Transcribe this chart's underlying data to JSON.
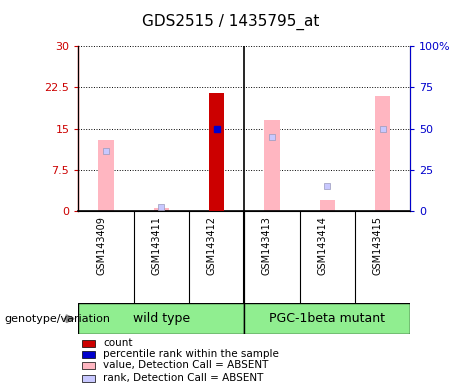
{
  "title": "GDS2515 / 1435795_at",
  "samples": [
    "GSM143409",
    "GSM143411",
    "GSM143412",
    "GSM143413",
    "GSM143414",
    "GSM143415"
  ],
  "pink_bars": [
    13.0,
    0.5,
    null,
    16.5,
    2.0,
    21.0
  ],
  "red_bars": [
    null,
    null,
    21.5,
    null,
    null,
    null
  ],
  "blue_markers": [
    null,
    null,
    15.0,
    null,
    null,
    null
  ],
  "light_blue_markers": [
    11.0,
    0.8,
    null,
    13.5,
    4.5,
    15.0
  ],
  "ylim_left": [
    0,
    30
  ],
  "ylim_right": [
    0,
    100
  ],
  "yticks_left": [
    0,
    7.5,
    15,
    22.5,
    30
  ],
  "yticks_right": [
    0,
    25,
    50,
    75,
    100
  ],
  "ytick_labels_left": [
    "0",
    "7.5",
    "15",
    "22.5",
    "30"
  ],
  "ytick_labels_right": [
    "0",
    "25",
    "50",
    "75",
    "100%"
  ],
  "left_axis_color": "#CC0000",
  "right_axis_color": "#0000CC",
  "wt_label": "wild type",
  "pgc_label": "PGC-1beta mutant",
  "genotype_label": "genotype/variation",
  "group_color": "#90EE90",
  "sample_bg_color": "#d3d3d3",
  "legend_items": [
    {
      "color": "#CC0000",
      "label": "count"
    },
    {
      "color": "#0000CC",
      "label": "percentile rank within the sample"
    },
    {
      "color": "#FFB6C1",
      "label": "value, Detection Call = ABSENT"
    },
    {
      "color": "#c8c8ff",
      "label": "rank, Detection Call = ABSENT"
    }
  ],
  "wt_indices": [
    0,
    1,
    2
  ],
  "pgc_indices": [
    3,
    4,
    5
  ]
}
